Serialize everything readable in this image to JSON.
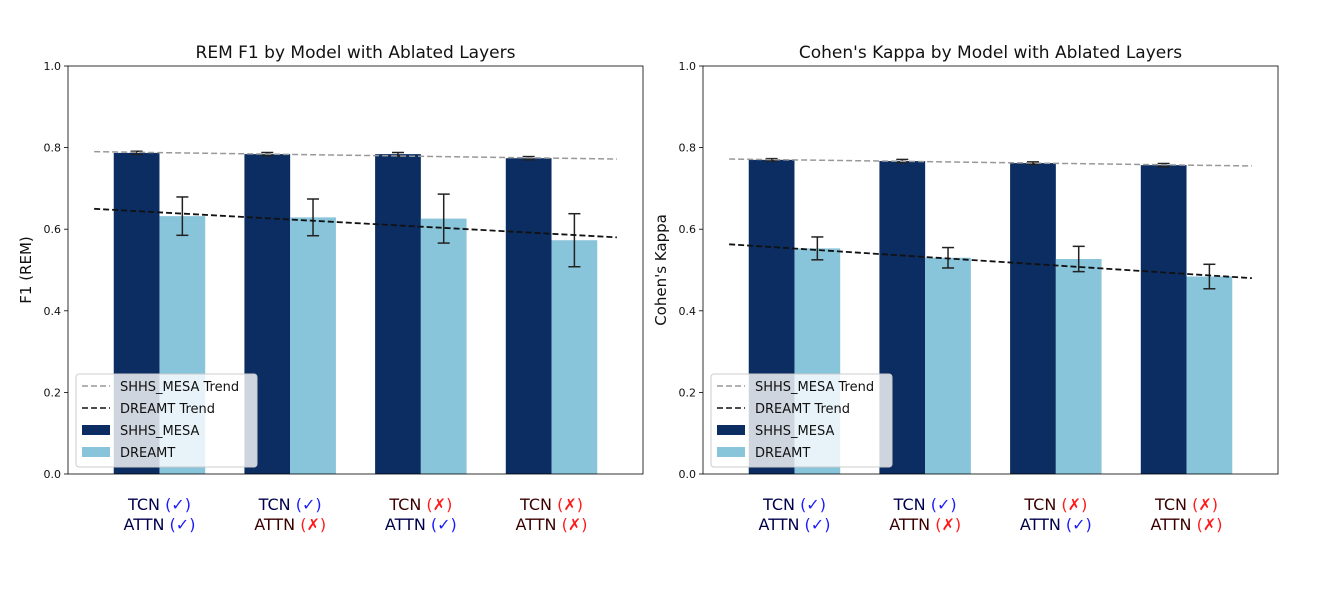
{
  "chart_data": [
    {
      "type": "bar",
      "title": "REM F1 by Model with Ablated Layers",
      "ylabel": "F1 (REM)",
      "xlabel": "",
      "ylim": [
        0,
        1
      ],
      "yticks": [
        "0.0",
        "0.2",
        "0.4",
        "0.6",
        "0.8",
        "1.0"
      ],
      "categories": [
        {
          "tcn": "TCN",
          "tcn_mark": "(✓)",
          "tcn_on": true,
          "attn": "ATTN",
          "attn_mark": "(✓)",
          "attn_on": true
        },
        {
          "tcn": "TCN",
          "tcn_mark": "(✓)",
          "tcn_on": true,
          "attn": "ATTN",
          "attn_mark": "(✗)",
          "attn_on": false
        },
        {
          "tcn": "TCN",
          "tcn_mark": "(✗)",
          "tcn_on": false,
          "attn": "ATTN",
          "attn_mark": "(✓)",
          "attn_on": true
        },
        {
          "tcn": "TCN",
          "tcn_mark": "(✗)",
          "tcn_on": false,
          "attn": "ATTN",
          "attn_mark": "(✗)",
          "attn_on": false
        }
      ],
      "series": [
        {
          "name": "SHHS_MESA",
          "color": "#0b2d61",
          "values": [
            0.787,
            0.784,
            0.784,
            0.774
          ],
          "errors": [
            0.004,
            0.004,
            0.004,
            0.004
          ]
        },
        {
          "name": "DREAMT",
          "color": "#88c4da",
          "values": [
            0.632,
            0.629,
            0.626,
            0.573
          ],
          "errors": [
            0.047,
            0.045,
            0.06,
            0.065
          ]
        }
      ],
      "trends": [
        {
          "name": "SHHS_MESA Trend",
          "color": "#999999",
          "start": 0.79,
          "end": 0.772
        },
        {
          "name": "DREAMT Trend",
          "color": "#111111",
          "start": 0.65,
          "end": 0.58
        }
      ],
      "legend_placement": "lower-left"
    },
    {
      "type": "bar",
      "title": "Cohen's Kappa by Model with Ablated Layers",
      "ylabel": "Cohen's Kappa",
      "xlabel": "",
      "ylim": [
        0,
        1
      ],
      "yticks": [
        "0.0",
        "0.2",
        "0.4",
        "0.6",
        "0.8",
        "1.0"
      ],
      "categories": [
        {
          "tcn": "TCN",
          "tcn_mark": "(✓)",
          "tcn_on": true,
          "attn": "ATTN",
          "attn_mark": "(✓)",
          "attn_on": true
        },
        {
          "tcn": "TCN",
          "tcn_mark": "(✓)",
          "tcn_on": true,
          "attn": "ATTN",
          "attn_mark": "(✗)",
          "attn_on": false
        },
        {
          "tcn": "TCN",
          "tcn_mark": "(✗)",
          "tcn_on": false,
          "attn": "ATTN",
          "attn_mark": "(✓)",
          "attn_on": true
        },
        {
          "tcn": "TCN",
          "tcn_mark": "(✗)",
          "tcn_on": false,
          "attn": "ATTN",
          "attn_mark": "(✗)",
          "attn_on": false
        }
      ],
      "series": [
        {
          "name": "SHHS_MESA",
          "color": "#0b2d61",
          "values": [
            0.77,
            0.767,
            0.762,
            0.757
          ],
          "errors": [
            0.003,
            0.004,
            0.003,
            0.004
          ]
        },
        {
          "name": "DREAMT",
          "color": "#88c4da",
          "values": [
            0.553,
            0.53,
            0.527,
            0.484
          ],
          "errors": [
            0.028,
            0.025,
            0.031,
            0.03
          ]
        }
      ],
      "trends": [
        {
          "name": "SHHS_MESA Trend",
          "color": "#999999",
          "start": 0.772,
          "end": 0.755
        },
        {
          "name": "DREAMT Trend",
          "color": "#111111",
          "start": 0.563,
          "end": 0.48
        }
      ],
      "legend_placement": "lower-left"
    }
  ]
}
